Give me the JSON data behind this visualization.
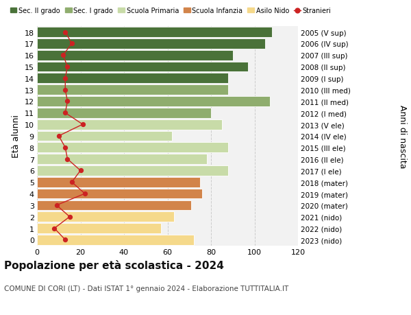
{
  "ages": [
    0,
    1,
    2,
    3,
    4,
    5,
    6,
    7,
    8,
    9,
    10,
    11,
    12,
    13,
    14,
    15,
    16,
    17,
    18
  ],
  "bar_values": [
    72,
    57,
    63,
    71,
    76,
    75,
    88,
    78,
    88,
    62,
    85,
    80,
    107,
    88,
    88,
    97,
    90,
    105,
    108
  ],
  "stranieri": [
    13,
    8,
    15,
    9,
    22,
    16,
    20,
    14,
    13,
    10,
    21,
    13,
    14,
    13,
    13,
    14,
    12,
    16,
    13
  ],
  "anni_nascita": [
    "2023 (nido)",
    "2022 (nido)",
    "2021 (nido)",
    "2020 (mater)",
    "2019 (mater)",
    "2018 (mater)",
    "2017 (I ele)",
    "2016 (II ele)",
    "2015 (III ele)",
    "2014 (IV ele)",
    "2013 (V ele)",
    "2012 (I med)",
    "2011 (II med)",
    "2010 (III med)",
    "2009 (I sup)",
    "2008 (II sup)",
    "2007 (III sup)",
    "2006 (IV sup)",
    "2005 (V sup)"
  ],
  "bar_colors": [
    "#f5d98b",
    "#f5d98b",
    "#f5d98b",
    "#d2844a",
    "#d2844a",
    "#d2844a",
    "#c8dba8",
    "#c8dba8",
    "#c8dba8",
    "#c8dba8",
    "#c8dba8",
    "#8fad6e",
    "#8fad6e",
    "#8fad6e",
    "#4a7239",
    "#4a7239",
    "#4a7239",
    "#4a7239",
    "#4a7239"
  ],
  "legend_labels": [
    "Sec. II grado",
    "Sec. I grado",
    "Scuola Primaria",
    "Scuola Infanzia",
    "Asilo Nido",
    "Stranieri"
  ],
  "legend_colors": [
    "#4a7239",
    "#8fad6e",
    "#c8dba8",
    "#d2844a",
    "#f5d98b",
    "#cc2222"
  ],
  "title": "Popolazione per età scolastica - 2024",
  "subtitle": "COMUNE DI CORI (LT) - Dati ISTAT 1° gennaio 2024 - Elaborazione TUTTITALIA.IT",
  "ylabel_left": "Età alunni",
  "ylabel_right": "Anni di nascita",
  "xlim": [
    0,
    120
  ],
  "xticks": [
    0,
    20,
    40,
    60,
    80,
    100,
    120
  ],
  "background_color": "#ffffff",
  "bar_background": "#f2f2f2",
  "grid_color": "#cccccc"
}
